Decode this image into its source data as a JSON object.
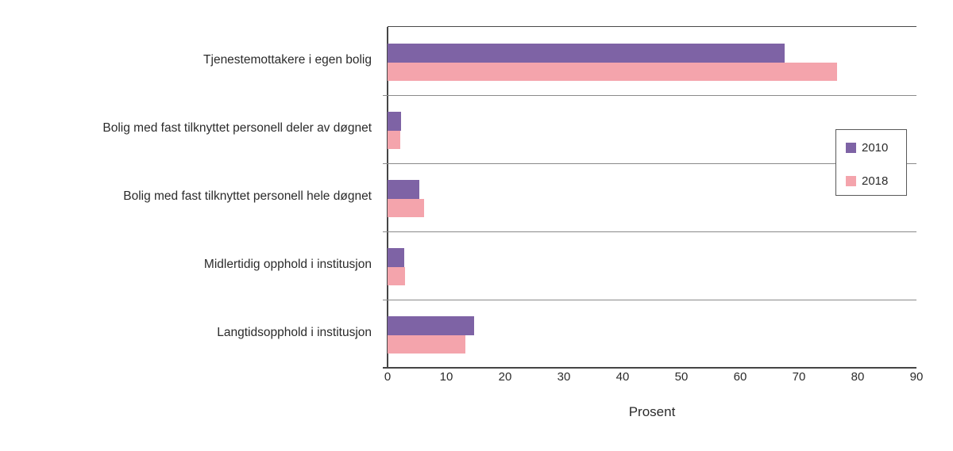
{
  "chart_data": {
    "type": "bar",
    "orientation": "horizontal",
    "title": "",
    "categories": [
      "Tjenestemottakere i egen bolig",
      "Bolig med fast tilknyttet personell deler av døgnet",
      "Bolig med fast tilknyttet personell hele døgnet",
      "Midlertidig opphold i institusjon",
      "Langtidsopphold i institusjon"
    ],
    "series": [
      {
        "name": "2010",
        "color": "#7e63a5",
        "values": [
          67.5,
          2.3,
          5.4,
          2.9,
          14.7
        ]
      },
      {
        "name": "2018",
        "color": "#f4a4ac",
        "values": [
          76.5,
          2.1,
          6.2,
          3.0,
          13.2
        ]
      }
    ],
    "xlabel": "Prosent",
    "xlim": [
      0,
      90
    ],
    "xticks": [
      0,
      10,
      20,
      30,
      40,
      50,
      60,
      70,
      80,
      90
    ],
    "grid": "horizontal-category-separators",
    "legend_position": "inside-right"
  },
  "legend": {
    "items": [
      {
        "label": "2010",
        "color": "#7e63a5"
      },
      {
        "label": "2018",
        "color": "#f4a4ac"
      }
    ]
  },
  "colors": {
    "bar_2010": "#7e63a5",
    "bar_2018": "#f4a4ac",
    "axis_line": "#454545",
    "separator_line": "#8a8a8a",
    "text": "#2b2b2b",
    "background": "#ffffff"
  }
}
